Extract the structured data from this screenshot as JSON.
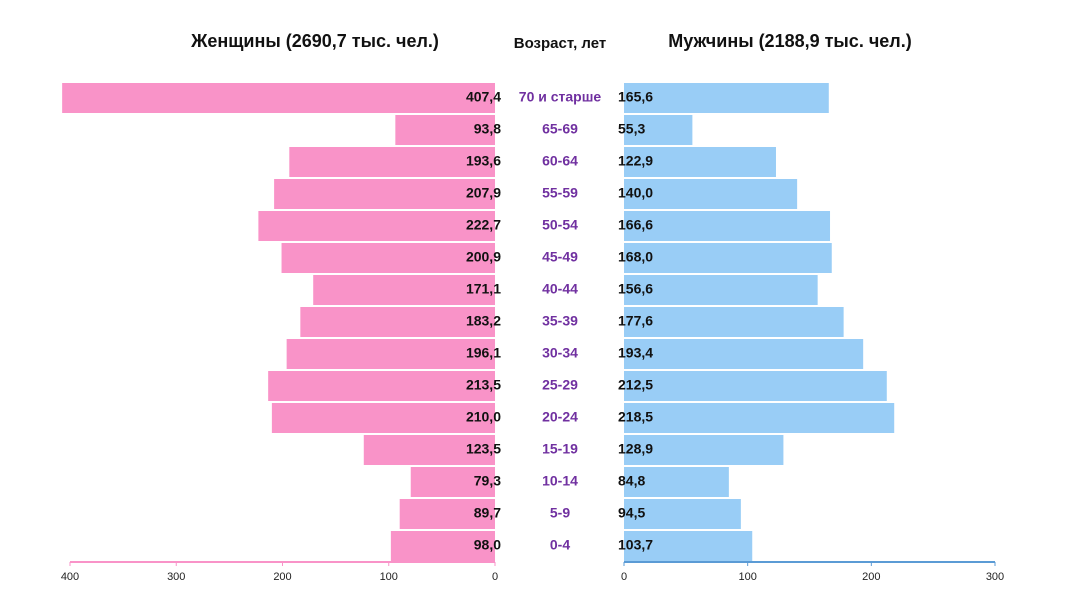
{
  "chart_data": {
    "type": "pyramid",
    "axis_label": "Возраст, лет",
    "categories": [
      "70 и старше",
      "65-69",
      "60-64",
      "55-59",
      "50-54",
      "45-49",
      "40-44",
      "35-39",
      "30-34",
      "25-29",
      "20-24",
      "15-19",
      "10-14",
      "5-9",
      "0-4"
    ],
    "series": [
      {
        "name": "Женщины (2690,7 тыс. чел.)",
        "color": "#f993c8",
        "values": [
          407.4,
          93.8,
          193.6,
          207.9,
          222.7,
          200.9,
          171.1,
          183.2,
          196.1,
          213.5,
          210.0,
          123.5,
          79.3,
          89.7,
          98.0
        ],
        "value_labels": [
          "407,4",
          "93,8",
          "193,6",
          "207,9",
          "222,7",
          "200,9",
          "171,1",
          "183,2",
          "196,1",
          "213,5",
          "210,0",
          "123,5",
          "79,3",
          "89,7",
          "98,0"
        ],
        "xlim": [
          0,
          400
        ],
        "xticks": [
          0,
          100,
          200,
          300,
          400
        ]
      },
      {
        "name": "Мужчины (2188,9 тыс. чел.)",
        "color": "#99cdf6",
        "values": [
          165.6,
          55.3,
          122.9,
          140.0,
          166.6,
          168.0,
          156.6,
          177.6,
          193.4,
          212.5,
          218.5,
          128.9,
          84.8,
          94.5,
          103.7
        ],
        "value_labels": [
          "165,6",
          "55,3",
          "122,9",
          "140,0",
          "166,6",
          "168,0",
          "156,6",
          "177,6",
          "193,4",
          "212,5",
          "218,5",
          "128,9",
          "84,8",
          "94,5",
          "103,7"
        ],
        "xlim": [
          0,
          300
        ],
        "xticks": [
          0,
          100,
          200,
          300
        ]
      }
    ]
  }
}
